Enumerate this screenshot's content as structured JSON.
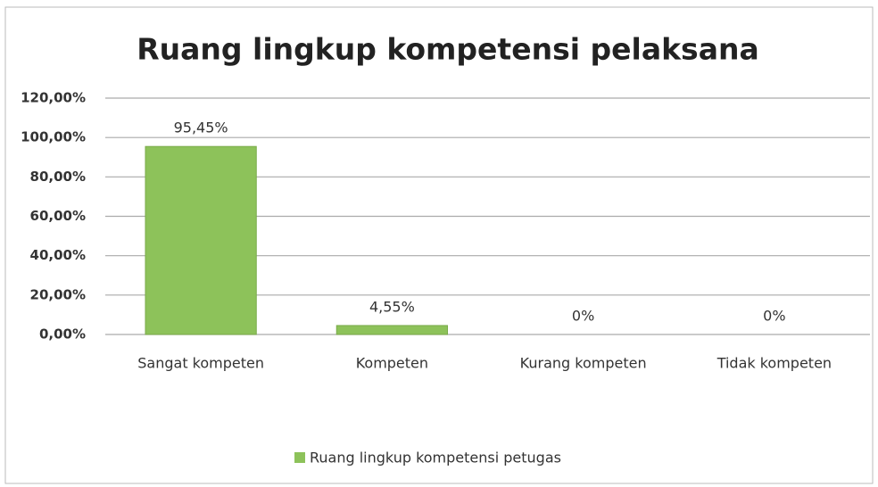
{
  "chart_data": {
    "type": "bar",
    "title": "Ruang lingkup kompetensi pelaksana",
    "categories": [
      "Sangat kompeten",
      "Kompeten",
      "Kurang kompeten",
      "Tidak kompeten"
    ],
    "series": [
      {
        "name": "Ruang lingkup kompetensi petugas",
        "color": "#8dc25a",
        "values": [
          95.45,
          4.55,
          0,
          0
        ],
        "value_labels": [
          "95,45%",
          "4,55%",
          "0%",
          "0%"
        ]
      }
    ],
    "ylim": [
      0,
      120
    ],
    "yticks": [
      {
        "value": 0,
        "label": "0,00%"
      },
      {
        "value": 20,
        "label": "20,00%"
      },
      {
        "value": 40,
        "label": "40,00%"
      },
      {
        "value": 60,
        "label": "60,00%"
      },
      {
        "value": 80,
        "label": "80,00%"
      },
      {
        "value": 100,
        "label": "100,00%"
      },
      {
        "value": 120,
        "label": "120,00%"
      }
    ],
    "grid": true,
    "legend": "bottom"
  }
}
